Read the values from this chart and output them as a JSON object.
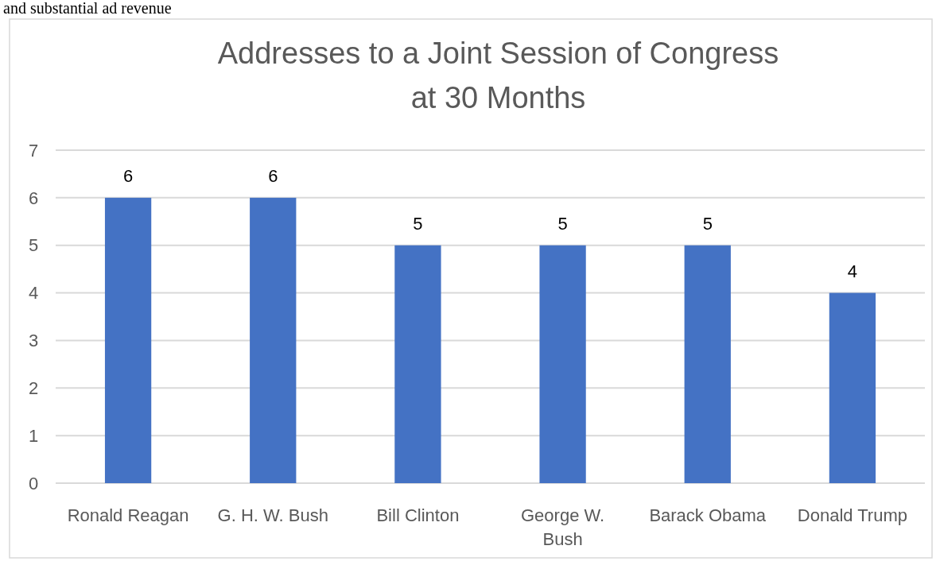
{
  "chart_data": {
    "type": "bar",
    "title": "Addresses to a Joint Session of Congress at 30 Months",
    "annotations": [
      "and substantial ad revenue"
    ],
    "categories": [
      "Ronald Reagan",
      "G. H. W. Bush",
      "Bill Clinton",
      "George W. Bush",
      "Barack Obama",
      "Donald Trump"
    ],
    "values": [
      6,
      6,
      5,
      5,
      5,
      4
    ],
    "color": "#4472c4",
    "ylim": [
      0,
      7
    ],
    "yticks": [
      0,
      1,
      2,
      3,
      4,
      5,
      6,
      7
    ],
    "grid": "y",
    "data_labels": true
  }
}
